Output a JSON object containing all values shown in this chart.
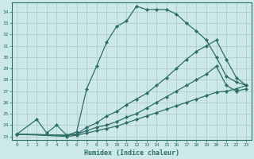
{
  "xlabel": "Humidex (Indice chaleur)",
  "bg_color": "#cde8e8",
  "grid_color": "#aac8c8",
  "line_color": "#2d6e68",
  "xlim_min": -0.5,
  "xlim_max": 23.5,
  "ylim_min": 22.7,
  "ylim_max": 34.8,
  "xticks": [
    0,
    1,
    2,
    3,
    4,
    5,
    6,
    7,
    8,
    9,
    10,
    11,
    12,
    13,
    14,
    15,
    16,
    17,
    18,
    19,
    20,
    21,
    22,
    23
  ],
  "yticks": [
    23,
    24,
    25,
    26,
    27,
    28,
    29,
    30,
    31,
    32,
    33,
    34
  ],
  "series": [
    {
      "x": [
        0,
        2,
        3,
        4,
        5,
        6,
        7,
        8,
        9,
        10,
        11,
        12,
        13,
        14,
        15,
        16,
        17,
        18,
        19,
        20,
        21,
        22,
        23
      ],
      "y": [
        23.2,
        24.5,
        23.3,
        24.0,
        23.1,
        23.4,
        27.2,
        29.2,
        31.3,
        32.7,
        33.2,
        34.5,
        34.2,
        34.2,
        34.2,
        33.8,
        33.0,
        32.3,
        31.5,
        30.0,
        28.3,
        27.8,
        27.5
      ]
    },
    {
      "x": [
        0,
        5,
        6,
        7,
        8,
        9,
        10,
        11,
        12,
        13,
        14,
        15,
        16,
        17,
        18,
        19,
        20,
        21,
        22,
        23
      ],
      "y": [
        23.2,
        23.1,
        23.2,
        23.8,
        24.2,
        24.8,
        25.2,
        25.8,
        26.3,
        26.8,
        27.5,
        28.2,
        29.0,
        29.8,
        30.5,
        31.0,
        31.5,
        29.8,
        28.2,
        27.5
      ]
    },
    {
      "x": [
        0,
        5,
        6,
        7,
        8,
        9,
        10,
        11,
        12,
        13,
        14,
        15,
        16,
        17,
        18,
        19,
        20,
        21,
        22,
        23
      ],
      "y": [
        23.2,
        23.1,
        23.2,
        23.5,
        23.8,
        24.0,
        24.3,
        24.7,
        25.0,
        25.5,
        26.0,
        26.5,
        27.0,
        27.5,
        28.0,
        28.5,
        29.2,
        27.5,
        27.0,
        27.2
      ]
    },
    {
      "x": [
        0,
        5,
        6,
        7,
        8,
        9,
        10,
        11,
        12,
        13,
        14,
        15,
        16,
        17,
        18,
        19,
        20,
        21,
        22,
        23
      ],
      "y": [
        23.2,
        23.0,
        23.1,
        23.3,
        23.5,
        23.7,
        23.9,
        24.2,
        24.5,
        24.8,
        25.1,
        25.4,
        25.7,
        26.0,
        26.3,
        26.6,
        26.9,
        27.0,
        27.2,
        27.5
      ]
    }
  ]
}
